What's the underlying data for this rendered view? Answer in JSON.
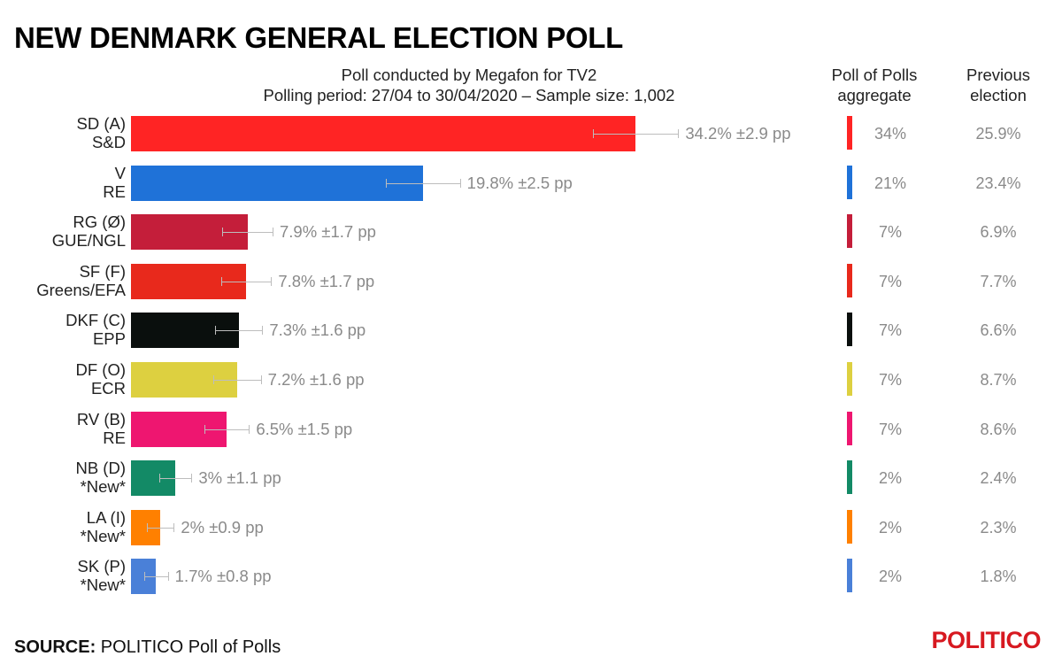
{
  "title": "NEW DENMARK GENERAL ELECTION POLL",
  "subtitle_line1": "Poll conducted by Megafon for TV2",
  "subtitle_line2": "Polling period: 27/04 to 30/04/2020 – Sample size: 1,002",
  "col_agg_line1": "Poll of Polls",
  "col_agg_line2": "aggregate",
  "col_prev_line1": "Previous",
  "col_prev_line2": "election",
  "source_label": "SOURCE:",
  "source_text": " POLITICO Poll of Polls",
  "logo": "POLITICO",
  "chart_data": {
    "type": "bar",
    "orientation": "horizontal",
    "unit": "%",
    "xlim": [
      0,
      34.2
    ],
    "rows": [
      {
        "party": "SD (A)",
        "group": "S&D",
        "value": 34.2,
        "error": 2.9,
        "label": "34.2% ±2.9 pp",
        "aggregate": "34%",
        "previous": "25.9%",
        "color": "#ff2424"
      },
      {
        "party": "V",
        "group": "RE",
        "value": 19.8,
        "error": 2.5,
        "label": "19.8% ±2.5 pp",
        "aggregate": "21%",
        "previous": "23.4%",
        "color": "#1f72d8"
      },
      {
        "party": "RG (Ø)",
        "group": "GUE/NGL",
        "value": 7.9,
        "error": 1.7,
        "label": "7.9% ±1.7 pp",
        "aggregate": "7%",
        "previous": "6.9%",
        "color": "#c41e3a"
      },
      {
        "party": "SF (F)",
        "group": "Greens/EFA",
        "value": 7.8,
        "error": 1.7,
        "label": "7.8% ±1.7 pp",
        "aggregate": "7%",
        "previous": "7.7%",
        "color": "#e8291c"
      },
      {
        "party": "DKF (C)",
        "group": "EPP",
        "value": 7.3,
        "error": 1.6,
        "label": "7.3% ±1.6 pp",
        "aggregate": "7%",
        "previous": "6.6%",
        "color": "#0a0f0d"
      },
      {
        "party": "DF (O)",
        "group": "ECR",
        "value": 7.2,
        "error": 1.6,
        "label": "7.2% ±1.6 pp",
        "aggregate": "7%",
        "previous": "8.7%",
        "color": "#ddd040"
      },
      {
        "party": "RV (B)",
        "group": "RE",
        "value": 6.5,
        "error": 1.5,
        "label": "6.5% ±1.5 pp",
        "aggregate": "7%",
        "previous": "8.6%",
        "color": "#ee1670"
      },
      {
        "party": "NB (D)",
        "group": "*New*",
        "value": 3,
        "error": 1.1,
        "label": "3% ±1.1 pp",
        "aggregate": "2%",
        "previous": "2.4%",
        "color": "#138a66"
      },
      {
        "party": "LA (I)",
        "group": "*New*",
        "value": 2,
        "error": 0.9,
        "label": "2% ±0.9 pp",
        "aggregate": "2%",
        "previous": "2.3%",
        "color": "#ff8000"
      },
      {
        "party": "SK (P)",
        "group": "*New*",
        "value": 1.7,
        "error": 0.8,
        "label": "1.7% ±0.8 pp",
        "aggregate": "2%",
        "previous": "1.8%",
        "color": "#4a80d8"
      }
    ]
  }
}
